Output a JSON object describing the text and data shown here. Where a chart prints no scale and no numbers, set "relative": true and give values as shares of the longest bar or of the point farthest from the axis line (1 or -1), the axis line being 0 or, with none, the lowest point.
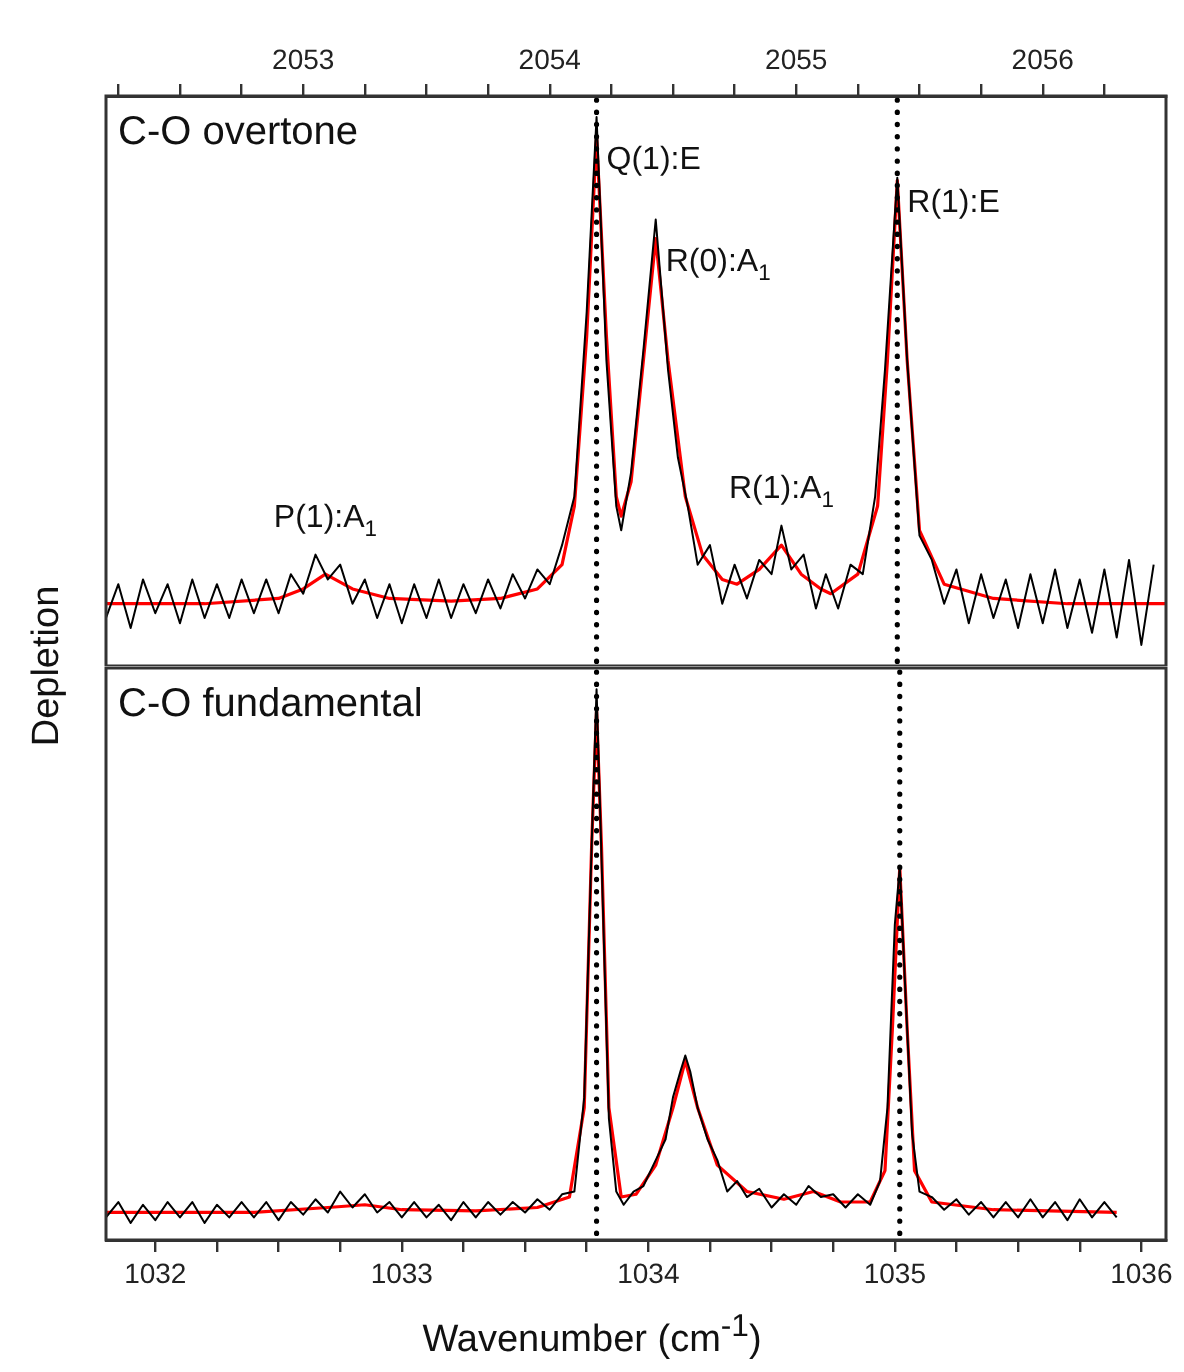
{
  "chart_data": [
    {
      "type": "line",
      "title": "C-O overtone",
      "ylabel": "Depletion",
      "relative": true,
      "xlim": [
        2052.2,
        2056.5
      ],
      "xticks": [
        {
          "value": 2052.25,
          "label": null
        },
        {
          "value": 2052.5,
          "label": null
        },
        {
          "value": 2052.75,
          "label": null
        },
        2053,
        {
          "value": 2053.25,
          "label": null
        },
        {
          "value": 2053.5,
          "label": null
        },
        {
          "value": 2053.75,
          "label": null
        },
        2054,
        {
          "value": 2054.25,
          "label": null
        },
        {
          "value": 2054.5,
          "label": null
        },
        {
          "value": 2054.75,
          "label": null
        },
        2055,
        {
          "value": 2055.25,
          "label": null
        },
        {
          "value": 2055.5,
          "label": null
        },
        {
          "value": 2055.75,
          "label": null
        },
        2056,
        {
          "value": 2056.25,
          "label": null
        }
      ],
      "series": [
        {
          "color": "#000000",
          "x": [
            2052.2,
            2052.25,
            2052.3,
            2052.35,
            2052.4,
            2052.45,
            2052.5,
            2052.55,
            2052.6,
            2052.65,
            2052.7,
            2052.75,
            2052.8,
            2052.85,
            2052.9,
            2052.95,
            2053.0,
            2053.05,
            2053.1,
            2053.15,
            2053.2,
            2053.25,
            2053.3,
            2053.35,
            2053.4,
            2053.45,
            2053.5,
            2053.55,
            2053.6,
            2053.65,
            2053.7,
            2053.75,
            2053.8,
            2053.85,
            2053.9,
            2053.95,
            2054.0,
            2054.05,
            2054.1,
            2054.15,
            2054.19,
            2054.23,
            2054.27,
            2054.29,
            2054.33,
            2054.38,
            2054.43,
            2054.48,
            2054.52,
            2054.56,
            2054.6,
            2054.65,
            2054.7,
            2054.75,
            2054.8,
            2054.85,
            2054.9,
            2054.94,
            2054.98,
            2055.03,
            2055.08,
            2055.12,
            2055.17,
            2055.22,
            2055.27,
            2055.32,
            2055.36,
            2055.41,
            2055.45,
            2055.5,
            2055.55,
            2055.6,
            2055.65,
            2055.7,
            2055.75,
            2055.8,
            2055.85,
            2055.9,
            2055.95,
            2056.0,
            2056.05,
            2056.1,
            2056.15,
            2056.2,
            2056.25,
            2056.3,
            2056.35,
            2056.4,
            2056.45
          ],
          "values": [
            0.051,
            0.115,
            0.032,
            0.124,
            0.06,
            0.115,
            0.041,
            0.124,
            0.051,
            0.115,
            0.051,
            0.124,
            0.06,
            0.124,
            0.06,
            0.134,
            0.097,
            0.171,
            0.124,
            0.152,
            0.078,
            0.124,
            0.051,
            0.115,
            0.041,
            0.115,
            0.051,
            0.124,
            0.051,
            0.115,
            0.06,
            0.124,
            0.069,
            0.134,
            0.088,
            0.143,
            0.115,
            0.189,
            0.281,
            0.631,
            1,
            0.539,
            0.263,
            0.217,
            0.327,
            0.558,
            0.806,
            0.521,
            0.355,
            0.263,
            0.152,
            0.189,
            0.078,
            0.152,
            0.088,
            0.161,
            0.134,
            0.226,
            0.143,
            0.171,
            0.069,
            0.134,
            0.069,
            0.152,
            0.134,
            0.281,
            0.521,
            0.885,
            0.539,
            0.207,
            0.161,
            0.078,
            0.143,
            0.041,
            0.134,
            0.051,
            0.124,
            0.032,
            0.134,
            0.041,
            0.143,
            0.032,
            0.124,
            0.023,
            0.143,
            0.014,
            0.161,
            0,
            0.152
          ]
        },
        {
          "color": "#ff0000",
          "x": [
            2052.2,
            2052.6,
            2052.9,
            2053.0,
            2053.09,
            2053.2,
            2053.35,
            2053.6,
            2053.8,
            2053.95,
            2054.05,
            2054.1,
            2054.15,
            2054.19,
            2054.23,
            2054.27,
            2054.29,
            2054.33,
            2054.38,
            2054.43,
            2054.48,
            2054.55,
            2054.62,
            2054.7,
            2054.76,
            2054.85,
            2054.94,
            2055.02,
            2055.1,
            2055.14,
            2055.25,
            2055.33,
            2055.37,
            2055.41,
            2055.45,
            2055.5,
            2055.6,
            2055.8,
            2056.1,
            2056.5
          ],
          "values": [
            0.078,
            0.078,
            0.088,
            0.106,
            0.134,
            0.106,
            0.088,
            0.083,
            0.088,
            0.106,
            0.152,
            0.263,
            0.585,
            0.963,
            0.585,
            0.281,
            0.244,
            0.309,
            0.539,
            0.77,
            0.539,
            0.281,
            0.171,
            0.124,
            0.115,
            0.143,
            0.189,
            0.134,
            0.106,
            0.097,
            0.134,
            0.263,
            0.539,
            0.88,
            0.539,
            0.217,
            0.115,
            0.088,
            0.078,
            0.078
          ]
        }
      ],
      "ref_lines": [
        {
          "axis": "x",
          "value": 2054.19,
          "color": "#000000",
          "line_style": "dotted"
        },
        {
          "axis": "x",
          "value": 2055.41,
          "color": "#000000",
          "line_style": "dotted"
        }
      ],
      "annotations": [
        {
          "text": "Q(1):E",
          "x": 2054.19,
          "y": 0.963
        },
        {
          "text": "R(0):A$_{1}$",
          "x": 2054.43,
          "y": 0.77
        },
        {
          "text": "R(1):E",
          "x": 2055.41,
          "y": 0.88
        },
        {
          "text": "P(1):A$_{1}$",
          "x": 2053.09,
          "y": 0.171
        },
        {
          "text": "R(1):A$_{1}$",
          "x": 2054.94,
          "y": 0.226
        }
      ]
    },
    {
      "type": "line",
      "title": "C-O fundamental",
      "xlabel": "Wavenumber (cm$^{-1}$)",
      "relative": true,
      "xlim": [
        1031.8,
        1036.1
      ],
      "xticks": [
        1032,
        {
          "value": 1032.25,
          "label": null
        },
        {
          "value": 1032.5,
          "label": null
        },
        {
          "value": 1032.75,
          "label": null
        },
        1033,
        {
          "value": 1033.25,
          "label": null
        },
        {
          "value": 1033.5,
          "label": null
        },
        {
          "value": 1033.75,
          "label": null
        },
        1034,
        {
          "value": 1034.25,
          "label": null
        },
        {
          "value": 1034.5,
          "label": null
        },
        {
          "value": 1034.75,
          "label": null
        },
        1035,
        {
          "value": 1035.25,
          "label": null
        },
        {
          "value": 1035.5,
          "label": null
        },
        {
          "value": 1035.75,
          "label": null
        },
        1036
      ],
      "series": [
        {
          "color": "#000000",
          "x": [
            1031.8,
            1031.85,
            1031.9,
            1031.95,
            1032.0,
            1032.05,
            1032.1,
            1032.15,
            1032.2,
            1032.25,
            1032.3,
            1032.35,
            1032.4,
            1032.45,
            1032.5,
            1032.55,
            1032.6,
            1032.65,
            1032.7,
            1032.75,
            1032.8,
            1032.85,
            1032.9,
            1032.95,
            1033.0,
            1033.05,
            1033.1,
            1033.15,
            1033.2,
            1033.25,
            1033.3,
            1033.35,
            1033.4,
            1033.45,
            1033.5,
            1033.55,
            1033.6,
            1033.65,
            1033.7,
            1033.74,
            1033.77,
            1033.79,
            1033.81,
            1033.84,
            1033.87,
            1033.9,
            1033.94,
            1033.98,
            1034.03,
            1034.07,
            1034.1,
            1034.13,
            1034.15,
            1034.17,
            1034.2,
            1034.24,
            1034.28,
            1034.32,
            1034.36,
            1034.4,
            1034.45,
            1034.5,
            1034.55,
            1034.6,
            1034.65,
            1034.7,
            1034.75,
            1034.8,
            1034.85,
            1034.9,
            1034.94,
            1034.97,
            1035.0,
            1035.02,
            1035.04,
            1035.07,
            1035.1,
            1035.15,
            1035.2,
            1035.25,
            1035.3,
            1035.35,
            1035.4,
            1035.45,
            1035.5,
            1035.55,
            1035.6,
            1035.65,
            1035.7,
            1035.75,
            1035.8,
            1035.85,
            1035.9
          ],
          "values": [
            0.041,
            0.069,
            0.031,
            0.064,
            0.036,
            0.069,
            0.041,
            0.069,
            0.031,
            0.064,
            0.041,
            0.069,
            0.041,
            0.069,
            0.036,
            0.069,
            0.046,
            0.074,
            0.05,
            0.088,
            0.059,
            0.083,
            0.05,
            0.069,
            0.041,
            0.069,
            0.041,
            0.064,
            0.036,
            0.069,
            0.041,
            0.069,
            0.046,
            0.069,
            0.05,
            0.074,
            0.055,
            0.083,
            0.088,
            0.259,
            0.715,
            1,
            0.696,
            0.221,
            0.088,
            0.064,
            0.088,
            0.098,
            0.145,
            0.183,
            0.259,
            0.306,
            0.335,
            0.306,
            0.24,
            0.183,
            0.145,
            0.088,
            0.107,
            0.078,
            0.093,
            0.059,
            0.083,
            0.064,
            0.098,
            0.078,
            0.083,
            0.059,
            0.083,
            0.064,
            0.107,
            0.24,
            0.573,
            0.677,
            0.478,
            0.193,
            0.088,
            0.078,
            0.055,
            0.074,
            0.046,
            0.069,
            0.041,
            0.069,
            0.041,
            0.074,
            0.041,
            0.069,
            0.036,
            0.074,
            0.041,
            0.069,
            0.041
          ]
        },
        {
          "color": "#ff0000",
          "x": [
            1031.8,
            1032.4,
            1032.7,
            1032.85,
            1033.0,
            1033.3,
            1033.55,
            1033.68,
            1033.74,
            1033.77,
            1033.79,
            1033.81,
            1033.84,
            1033.89,
            1033.95,
            1034.03,
            1034.1,
            1034.15,
            1034.2,
            1034.28,
            1034.4,
            1034.55,
            1034.67,
            1034.78,
            1034.9,
            1034.96,
            1034.99,
            1035.02,
            1035.05,
            1035.08,
            1035.15,
            1035.4,
            1035.9
          ],
          "values": [
            0.05,
            0.05,
            0.059,
            0.064,
            0.055,
            0.053,
            0.059,
            0.078,
            0.24,
            0.715,
            0.962,
            0.715,
            0.24,
            0.078,
            0.083,
            0.136,
            0.24,
            0.326,
            0.24,
            0.136,
            0.088,
            0.074,
            0.088,
            0.069,
            0.069,
            0.126,
            0.383,
            0.677,
            0.383,
            0.126,
            0.069,
            0.055,
            0.05
          ]
        }
      ],
      "ref_lines": [
        {
          "axis": "x",
          "value": 1033.79,
          "color": "#000000",
          "line_style": "dotted"
        },
        {
          "axis": "x",
          "value": 1035.02,
          "color": "#000000",
          "line_style": "dotted"
        }
      ]
    }
  ]
}
